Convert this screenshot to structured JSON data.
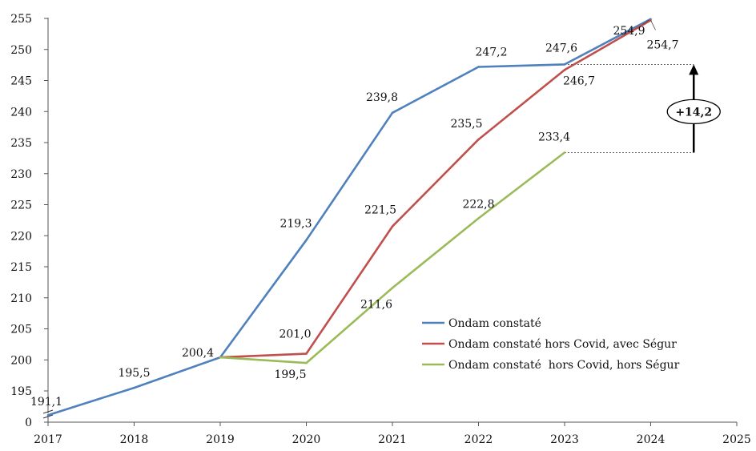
{
  "chart_data": {
    "type": "line",
    "x": [
      2017,
      2018,
      2019,
      2020,
      2021,
      2022,
      2023,
      2024
    ],
    "xlim": [
      2017,
      2025
    ],
    "x_ticks": [
      "2017",
      "2018",
      "2019",
      "2020",
      "2021",
      "2022",
      "2023",
      "2024",
      "2025"
    ],
    "y_ticks": [
      "0",
      "195",
      "200",
      "205",
      "210",
      "215",
      "220",
      "225",
      "230",
      "235",
      "240",
      "245",
      "250",
      "255"
    ],
    "ylim": [
      190,
      255
    ],
    "axis_break": true,
    "legend_position": "bottom-right",
    "series": [
      {
        "name": "Ondam constaté",
        "color": "#4f81bd",
        "x": [
          2017,
          2018,
          2019,
          2020,
          2021,
          2022,
          2023,
          2024
        ],
        "values": [
          191.1,
          195.5,
          200.4,
          219.3,
          239.8,
          247.2,
          247.6,
          254.9
        ],
        "labels": [
          "191,1",
          "195,5",
          "200,4",
          "219,3",
          "239,8",
          "247,2",
          "247,6",
          "254,9"
        ]
      },
      {
        "name": "Ondam constaté hors Covid, avec Ségur",
        "color": "#c0504d",
        "x": [
          2019,
          2020,
          2021,
          2022,
          2023,
          2024
        ],
        "values": [
          200.4,
          201.0,
          221.5,
          235.5,
          246.7,
          254.7
        ],
        "labels": [
          "",
          "201,0",
          "221,5",
          "235,5",
          "246,7",
          "254,7"
        ]
      },
      {
        "name": "Ondam constaté  hors Covid, hors Ségur",
        "color": "#9bbb59",
        "x": [
          2019,
          2020,
          2021,
          2022,
          2023
        ],
        "values": [
          200.4,
          199.5,
          211.6,
          222.8,
          233.4
        ],
        "labels": [
          "",
          "199,5",
          "211,6",
          "222,8",
          "233,4"
        ]
      }
    ],
    "annotation": {
      "text": "+14,2",
      "from_value": 233.4,
      "to_value": 247.6,
      "x": 2024.5
    }
  }
}
